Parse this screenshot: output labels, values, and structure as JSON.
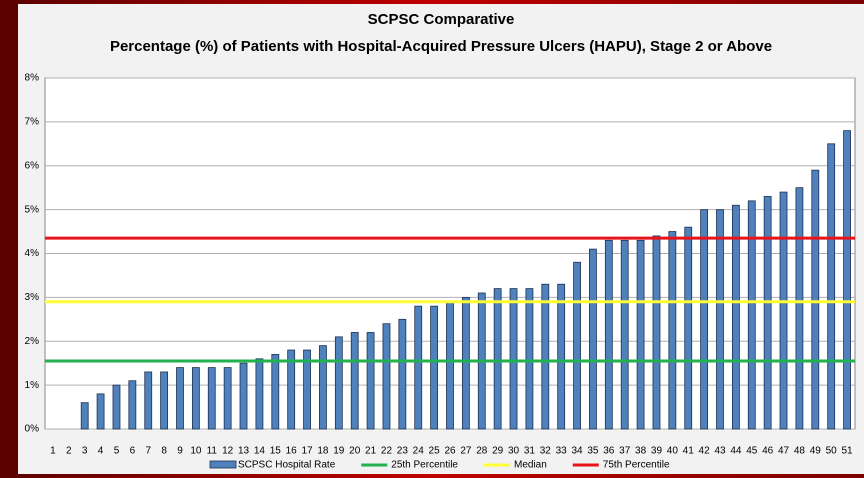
{
  "chart_data": {
    "type": "bar",
    "title": "SCPSC Comparative",
    "subtitle": "Percentage (%) of Patients with Hospital-Acquired Pressure Ulcers (HAPU), Stage 2 or Above",
    "categories": [
      "1",
      "2",
      "3",
      "4",
      "5",
      "6",
      "7",
      "8",
      "9",
      "10",
      "11",
      "12",
      "13",
      "14",
      "15",
      "16",
      "17",
      "18",
      "19",
      "20",
      "21",
      "22",
      "23",
      "24",
      "25",
      "26",
      "27",
      "28",
      "29",
      "30",
      "31",
      "32",
      "33",
      "34",
      "35",
      "36",
      "37",
      "38",
      "39",
      "40",
      "41",
      "42",
      "43",
      "44",
      "45",
      "46",
      "47",
      "48",
      "49",
      "50",
      "51"
    ],
    "series": [
      {
        "name": "SCPSC Hospital Rate",
        "color": "#4f81bd",
        "values": [
          0,
          0,
          0.6,
          0.8,
          1.0,
          1.1,
          1.3,
          1.3,
          1.4,
          1.4,
          1.4,
          1.4,
          1.5,
          1.6,
          1.7,
          1.8,
          1.8,
          1.9,
          2.1,
          2.2,
          2.2,
          2.4,
          2.5,
          2.8,
          2.8,
          2.9,
          3.0,
          3.1,
          3.2,
          3.2,
          3.2,
          3.3,
          3.3,
          3.8,
          4.1,
          4.3,
          4.3,
          4.3,
          4.4,
          4.5,
          4.6,
          5.0,
          5.0,
          5.1,
          5.2,
          5.3,
          5.4,
          5.5,
          5.9,
          6.5,
          6.8
        ]
      }
    ],
    "reference_lines": [
      {
        "name": "25th Percentile",
        "color": "#22b14c",
        "value": 1.55
      },
      {
        "name": "Median",
        "color": "#ffff33",
        "value": 2.9
      },
      {
        "name": "75th Percentile",
        "color": "#e8141c",
        "value": 4.35
      }
    ],
    "ylim": [
      0,
      8
    ],
    "yticks": [
      {
        "value": 0,
        "label": "0%"
      },
      {
        "value": 1,
        "label": "1%"
      },
      {
        "value": 2,
        "label": "2%"
      },
      {
        "value": 3,
        "label": "3%"
      },
      {
        "value": 4,
        "label": "4%"
      },
      {
        "value": 5,
        "label": "5%"
      },
      {
        "value": 6,
        "label": "6%"
      },
      {
        "value": 7,
        "label": "7%"
      },
      {
        "value": 8,
        "label": "8%"
      }
    ],
    "grid": true
  }
}
